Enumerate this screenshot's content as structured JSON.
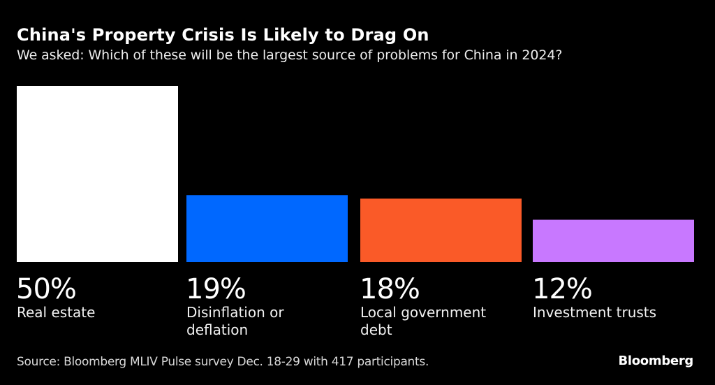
{
  "chart_data": {
    "type": "bar",
    "title": "China's Property Crisis Is Likely to Drag On",
    "subtitle": "We asked: Which of these will be the largest source of problems for China in 2024?",
    "xlabel": "",
    "ylabel": "",
    "ylim": [
      0,
      50
    ],
    "grid": false,
    "legend": "none",
    "categories": [
      "Real estate",
      "Disinflation or deflation",
      "Local government debt",
      "Investment trusts"
    ],
    "category_lines": [
      [
        "Real estate"
      ],
      [
        "Disinflation or",
        "deflation"
      ],
      [
        "Local government",
        "debt"
      ],
      [
        "Investment trusts"
      ]
    ],
    "values": [
      50,
      19,
      18,
      12
    ],
    "value_labels": [
      "50%",
      "19%",
      "18%",
      "12%"
    ],
    "colors": [
      "#ffffff",
      "#0068ff",
      "#fa5a28",
      "#c878ff"
    ],
    "source": "Source: Bloomberg MLIV Pulse survey Dec. 18-29 with 417 participants.",
    "brand": "Bloomberg"
  }
}
